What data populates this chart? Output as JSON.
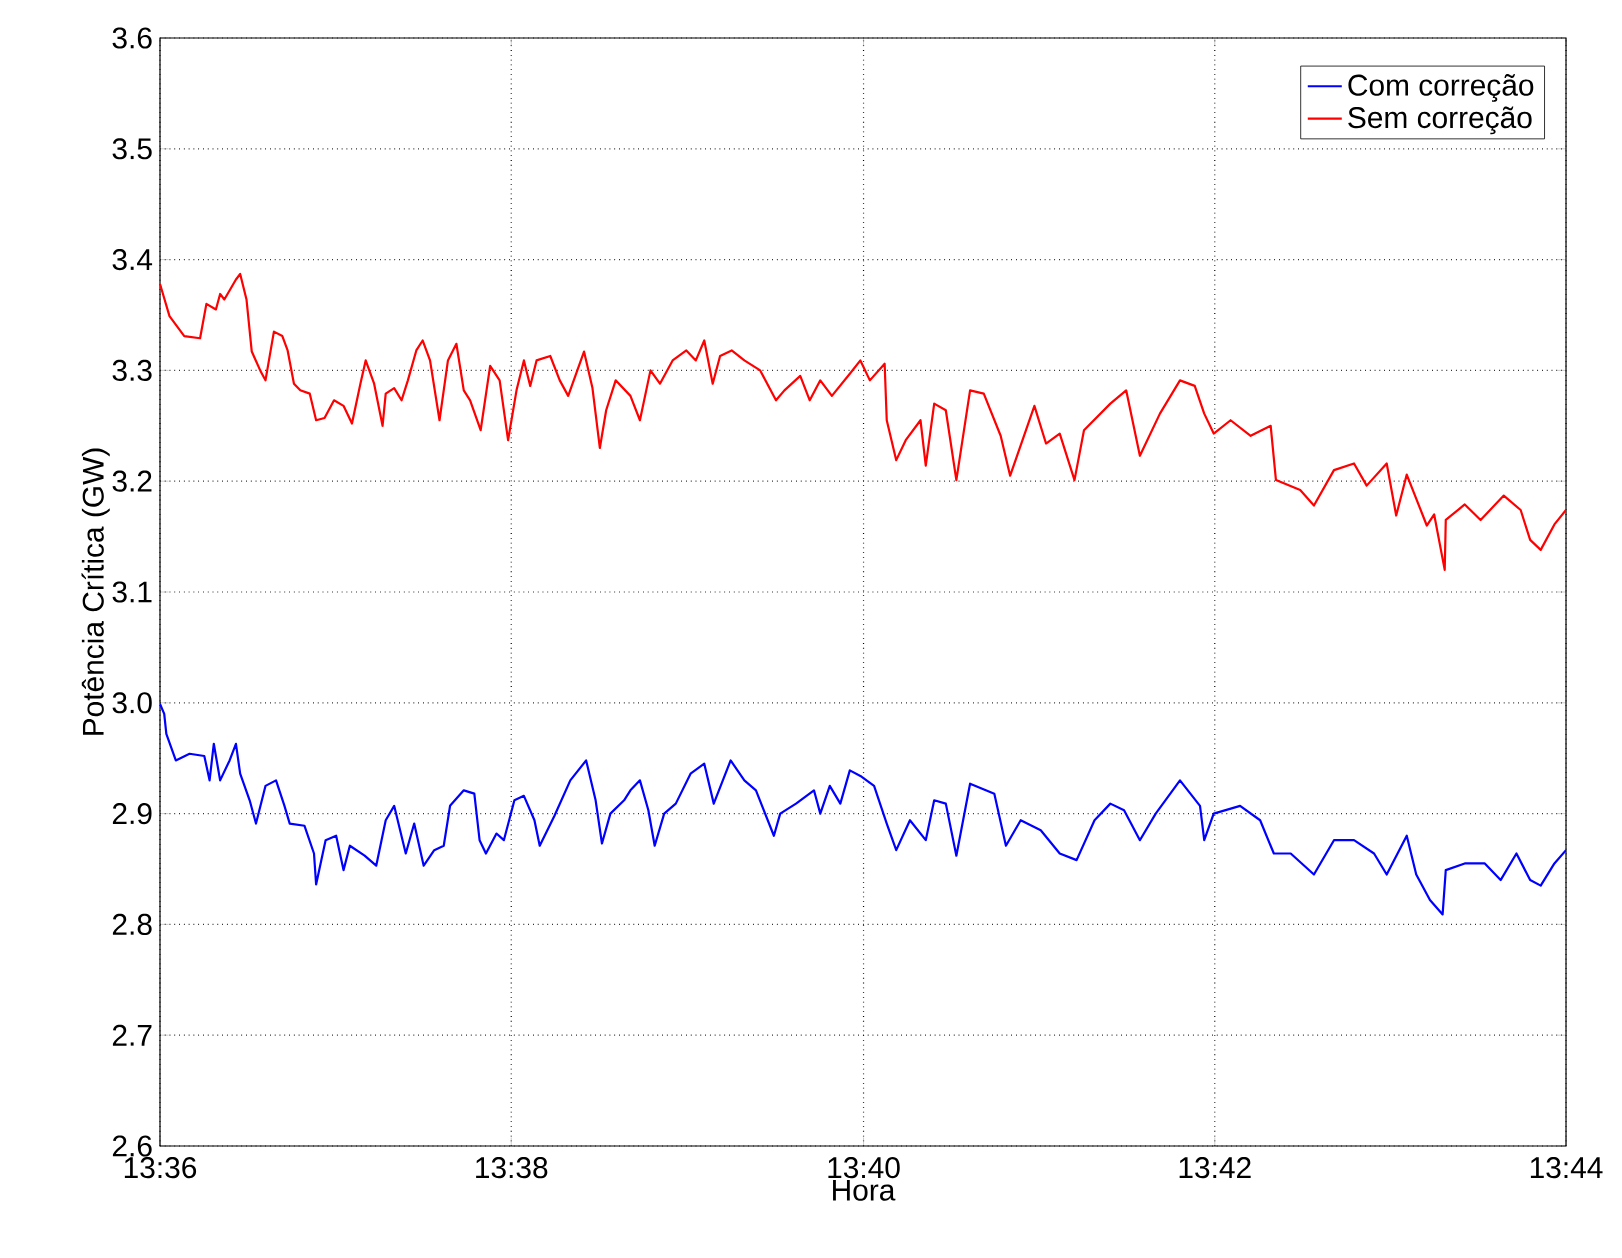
{
  "chart_data": {
    "type": "line",
    "xlabel": "Hora",
    "ylabel": "Potência Crítica (GW)",
    "xlim": [
      13.6,
      13.7333
    ],
    "ylim": [
      2.6,
      3.6
    ],
    "xticks": [
      {
        "value": 13.6,
        "label": "13:36"
      },
      {
        "value": 13.6333,
        "label": "13:38"
      },
      {
        "value": 13.6667,
        "label": "13:40"
      },
      {
        "value": 13.7,
        "label": "13:42"
      },
      {
        "value": 13.7333,
        "label": "13:44"
      }
    ],
    "yticks": [
      2.6,
      2.7,
      2.8,
      2.9,
      {
        "value": 3.0,
        "label": "3.0"
      },
      3.1,
      3.2,
      3.3,
      3.4,
      3.5,
      3.6
    ],
    "grid": true,
    "legend": "top right",
    "series": [
      {
        "name": "Com correção",
        "color": "#0000ff",
        "x": [
          13.6,
          13.6004,
          13.6006,
          13.6015,
          13.6028,
          13.6042,
          13.6047,
          13.6051,
          13.6057,
          13.6066,
          13.6072,
          13.6076,
          13.6085,
          13.6091,
          13.61,
          13.611,
          13.6118,
          13.6123,
          13.6137,
          13.6146,
          13.6148,
          13.6157,
          13.6167,
          13.6174,
          13.618,
          13.6194,
          13.6205,
          13.6214,
          13.6222,
          13.6233,
          13.6241,
          13.625,
          13.626,
          13.6269,
          13.6275,
          13.6288,
          13.6298,
          13.6303,
          13.6309,
          13.6319,
          13.6326,
          13.6336,
          13.6345,
          13.6355,
          13.636,
          13.6374,
          13.6389,
          13.6404,
          13.6413,
          13.6419,
          13.6427,
          13.644,
          13.6446,
          13.6455,
          13.6463,
          13.6469,
          13.6478,
          13.6489,
          13.6503,
          13.6516,
          13.6525,
          13.6541,
          13.6554,
          13.6565,
          13.6582,
          13.6588,
          13.6603,
          13.662,
          13.6626,
          13.6635,
          13.6645,
          13.6654,
          13.6664,
          13.6677,
          13.6689,
          13.6698,
          13.6711,
          13.6726,
          13.6734,
          13.6745,
          13.6755,
          13.6768,
          13.6791,
          13.6802,
          13.6816,
          13.6835,
          13.6853,
          13.6869,
          13.6886,
          13.6901,
          13.6914,
          13.6929,
          13.6944,
          13.6967,
          13.6986,
          13.699,
          13.6999,
          13.7024,
          13.7043,
          13.7056,
          13.7072,
          13.7094,
          13.7113,
          13.7132,
          13.7151,
          13.7163,
          13.7182,
          13.7191,
          13.7204,
          13.7216,
          13.7219,
          13.7237,
          13.7256,
          13.7271,
          13.7286,
          13.7299,
          13.7309,
          13.7322,
          13.7333
        ],
        "values": [
          2.999,
          2.99,
          2.972,
          2.948,
          2.954,
          2.952,
          2.93,
          2.963,
          2.93,
          2.948,
          2.963,
          2.936,
          2.912,
          2.891,
          2.925,
          2.93,
          2.907,
          2.891,
          2.889,
          2.864,
          2.836,
          2.876,
          2.88,
          2.849,
          2.871,
          2.862,
          2.853,
          2.894,
          2.907,
          2.864,
          2.891,
          2.853,
          2.867,
          2.871,
          2.907,
          2.921,
          2.918,
          2.876,
          2.864,
          2.882,
          2.876,
          2.912,
          2.916,
          2.894,
          2.871,
          2.898,
          2.93,
          2.948,
          2.912,
          2.873,
          2.9,
          2.912,
          2.921,
          2.93,
          2.903,
          2.871,
          2.9,
          2.909,
          2.936,
          2.945,
          2.909,
          2.948,
          2.93,
          2.921,
          2.88,
          2.9,
          2.909,
          2.921,
          2.9,
          2.925,
          2.909,
          2.939,
          2.934,
          2.925,
          2.891,
          2.867,
          2.894,
          2.876,
          2.912,
          2.909,
          2.862,
          2.927,
          2.918,
          2.871,
          2.894,
          2.885,
          2.864,
          2.858,
          2.894,
          2.909,
          2.903,
          2.876,
          2.9,
          2.93,
          2.907,
          2.876,
          2.9,
          2.907,
          2.894,
          2.864,
          2.864,
          2.845,
          2.876,
          2.876,
          2.864,
          2.845,
          2.88,
          2.845,
          2.822,
          2.809,
          2.849,
          2.855,
          2.855,
          2.84,
          2.864,
          2.84,
          2.835,
          2.855,
          2.867
        ]
      },
      {
        "name": "Sem correção",
        "color": "#ff0000",
        "x": [
          13.6,
          13.6009,
          13.6023,
          13.6038,
          13.6044,
          13.6053,
          13.6057,
          13.6061,
          13.6072,
          13.6076,
          13.6082,
          13.6087,
          13.6095,
          13.61,
          13.6108,
          13.6116,
          13.6121,
          13.6127,
          13.6133,
          13.6142,
          13.6148,
          13.6156,
          13.6165,
          13.6174,
          13.6182,
          13.619,
          13.6195,
          13.6203,
          13.6211,
          13.6214,
          13.6222,
          13.6229,
          13.6235,
          13.6243,
          13.6249,
          13.6256,
          13.6265,
          13.6273,
          13.6281,
          13.6288,
          13.6294,
          13.6304,
          13.6313,
          13.6322,
          13.633,
          13.6338,
          13.6345,
          13.6351,
          13.6357,
          13.637,
          13.6379,
          13.6387,
          13.6402,
          13.641,
          13.6417,
          13.6423,
          13.6432,
          13.6446,
          13.6455,
          13.6465,
          13.6474,
          13.6486,
          13.6499,
          13.6508,
          13.6516,
          13.6524,
          13.6531,
          13.6542,
          13.6554,
          13.6569,
          13.6584,
          13.6592,
          13.6607,
          13.6616,
          13.6626,
          13.6637,
          13.6654,
          13.6664,
          13.6673,
          13.6687,
          13.6689,
          13.6698,
          13.6707,
          13.6721,
          13.6726,
          13.6734,
          13.6745,
          13.6755,
          13.6768,
          13.6781,
          13.6797,
          13.6806,
          13.6829,
          13.684,
          13.6853,
          13.6867,
          13.6876,
          13.6901,
          13.6916,
          13.6929,
          13.6948,
          13.6967,
          13.6981,
          13.699,
          13.6999,
          13.7015,
          13.7034,
          13.7053,
          13.7058,
          13.7081,
          13.7094,
          13.7113,
          13.7132,
          13.7144,
          13.7163,
          13.7172,
          13.7182,
          13.7201,
          13.7208,
          13.7218,
          13.7219,
          13.7237,
          13.7252,
          13.7274,
          13.729,
          13.7299,
          13.7309,
          13.7322,
          13.7333
        ],
        "values": [
          3.378,
          3.349,
          3.331,
          3.329,
          3.36,
          3.355,
          3.369,
          3.364,
          3.382,
          3.387,
          3.364,
          3.317,
          3.3,
          3.291,
          3.335,
          3.331,
          3.318,
          3.288,
          3.282,
          3.279,
          3.255,
          3.257,
          3.273,
          3.268,
          3.252,
          3.288,
          3.309,
          3.288,
          3.25,
          3.279,
          3.284,
          3.273,
          3.291,
          3.318,
          3.327,
          3.309,
          3.255,
          3.309,
          3.324,
          3.282,
          3.273,
          3.246,
          3.304,
          3.291,
          3.237,
          3.282,
          3.309,
          3.286,
          3.309,
          3.313,
          3.291,
          3.277,
          3.317,
          3.284,
          3.23,
          3.264,
          3.291,
          3.277,
          3.255,
          3.3,
          3.288,
          3.309,
          3.318,
          3.309,
          3.327,
          3.288,
          3.313,
          3.318,
          3.309,
          3.3,
          3.273,
          3.282,
          3.295,
          3.273,
          3.291,
          3.277,
          3.297,
          3.309,
          3.291,
          3.306,
          3.255,
          3.219,
          3.237,
          3.255,
          3.214,
          3.27,
          3.264,
          3.201,
          3.282,
          3.279,
          3.241,
          3.205,
          3.268,
          3.234,
          3.243,
          3.201,
          3.246,
          3.27,
          3.282,
          3.223,
          3.261,
          3.291,
          3.286,
          3.261,
          3.243,
          3.255,
          3.241,
          3.25,
          3.201,
          3.192,
          3.178,
          3.21,
          3.216,
          3.196,
          3.216,
          3.169,
          3.206,
          3.16,
          3.17,
          3.12,
          3.165,
          3.179,
          3.165,
          3.187,
          3.174,
          3.147,
          3.138,
          3.161,
          3.174
        ]
      }
    ]
  }
}
